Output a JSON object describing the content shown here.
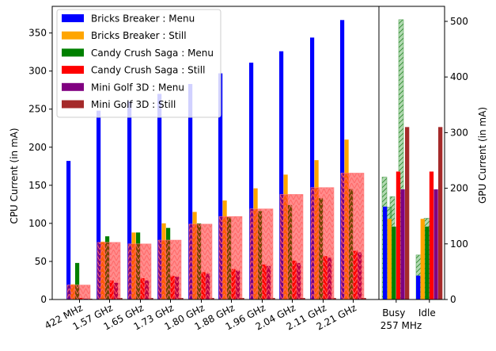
{
  "chart_data": {
    "type": "bar",
    "title": "",
    "ylabel": "CPU Current (in mA)",
    "y2label": "GPU Current (in mA)",
    "ylim": [
      0,
      385
    ],
    "y2lim": [
      0,
      527
    ],
    "yticks": [
      0,
      50,
      100,
      150,
      200,
      250,
      300,
      350
    ],
    "y2ticks": [
      0,
      100,
      200,
      300,
      400,
      500
    ],
    "legend_position": "top-left",
    "grid": false,
    "categories": [
      "422 MHz",
      "1.57 GHz",
      "1.65 GHz",
      "1.73 GHz",
      "1.80 GHz",
      "1.88 GHz",
      "1.96 GHz",
      "2.04 GHz",
      "2.11 GHz",
      "2.21 GHz"
    ],
    "gpu_categories": [
      "Busy",
      "Idle"
    ],
    "gpu_group_label": "257 MHz",
    "series": [
      {
        "name": "Bricks Breaker : Menu",
        "color": "#0000ff",
        "cpu": [
          182,
          248,
          260,
          270,
          283,
          297,
          311,
          326,
          344,
          367
        ],
        "gpu": [
          167,
          43
        ]
      },
      {
        "name": "Bricks Breaker : Still",
        "color": "#ffa500",
        "cpu": [
          20,
          76,
          88,
          100,
          115,
          130,
          146,
          164,
          183,
          210
        ],
        "gpu": [
          145,
          145
        ]
      },
      {
        "name": "Candy Crush Saga : Menu",
        "color": "#008000",
        "cpu": [
          48,
          83,
          88,
          94,
          100,
          108,
          116,
          124,
          133,
          145
        ],
        "gpu": [
          131,
          131
        ]
      },
      {
        "name": "Candy Crush Saga : Still",
        "color": "#ff0000",
        "cpu": [
          2,
          25,
          28,
          31,
          36,
          40,
          46,
          51,
          57,
          64
        ],
        "gpu": [
          230,
          230
        ]
      },
      {
        "name": "Mini Golf 3D : Menu",
        "color": "#800080",
        "cpu": [
          1,
          22,
          25,
          30,
          34,
          38,
          44,
          48,
          55,
          62
        ],
        "gpu": [
          198,
          198
        ]
      },
      {
        "name": "Mini Golf 3D : Still",
        "color": "#a52a2a",
        "cpu": [
          1,
          2,
          2,
          2,
          2,
          2,
          2,
          2,
          2,
          2
        ],
        "gpu": [
          310,
          310
        ]
      }
    ],
    "cpu_hatched_series": {
      "color": "#ff0000",
      "values": [
        19,
        75,
        73,
        78,
        99,
        109,
        119,
        138,
        147,
        166
      ]
    },
    "gpu_hatched_series": {
      "color": "#008000",
      "busy": [
        220,
        166,
        185,
        503
      ],
      "idle": [
        80,
        146
      ]
    }
  }
}
